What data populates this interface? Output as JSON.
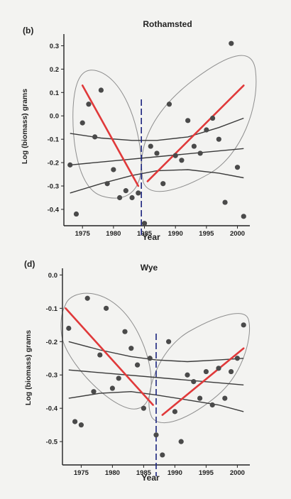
{
  "page": {
    "background": "#f3f3f1"
  },
  "colors": {
    "points": "#4a4a4a",
    "fit_lines": "#e0393a",
    "trend_lines": "#3a3a3a",
    "ellipses": "#8e8e8e",
    "break_line": "#1a237e",
    "axes": "#222222"
  },
  "chart_data": [
    {
      "type": "scatter",
      "panel_label": "(b)",
      "title": "Rothamsted",
      "xlabel": "Year",
      "ylabel": "Log (biomass) grams",
      "xlim": [
        1972,
        2002
      ],
      "ylim": [
        -0.47,
        0.35
      ],
      "xticks": [
        1975,
        1980,
        1985,
        1990,
        1995,
        2000
      ],
      "yticks": [
        0.3,
        0.2,
        0.1,
        0.0,
        -0.1,
        -0.2,
        -0.3,
        -0.4
      ],
      "ytick_labels": [
        "0.3",
        "0.2",
        "0.1",
        "0.0",
        "-0.1",
        "-0.2",
        "-0.3",
        "-0.4"
      ],
      "points": [
        {
          "x": 1973,
          "y": -0.21
        },
        {
          "x": 1974,
          "y": -0.42
        },
        {
          "x": 1975,
          "y": -0.03
        },
        {
          "x": 1976,
          "y": 0.05
        },
        {
          "x": 1977,
          "y": -0.09
        },
        {
          "x": 1978,
          "y": 0.11
        },
        {
          "x": 1979,
          "y": -0.29
        },
        {
          "x": 1980,
          "y": -0.23
        },
        {
          "x": 1981,
          "y": -0.35
        },
        {
          "x": 1982,
          "y": -0.32
        },
        {
          "x": 1983,
          "y": -0.35
        },
        {
          "x": 1984,
          "y": -0.33
        },
        {
          "x": 1985,
          "y": -0.46
        },
        {
          "x": 1986,
          "y": -0.13
        },
        {
          "x": 1987,
          "y": -0.16
        },
        {
          "x": 1988,
          "y": -0.29
        },
        {
          "x": 1989,
          "y": 0.05
        },
        {
          "x": 1990,
          "y": -0.17
        },
        {
          "x": 1991,
          "y": -0.19
        },
        {
          "x": 1992,
          "y": -0.02
        },
        {
          "x": 1993,
          "y": -0.13
        },
        {
          "x": 1994,
          "y": -0.16
        },
        {
          "x": 1995,
          "y": -0.06
        },
        {
          "x": 1996,
          "y": -0.01
        },
        {
          "x": 1997,
          "y": -0.1
        },
        {
          "x": 1998,
          "y": -0.37
        },
        {
          "x": 1999,
          "y": 0.31
        },
        {
          "x": 2000,
          "y": -0.22
        },
        {
          "x": 2001,
          "y": -0.43
        }
      ],
      "segment_fits": [
        {
          "x": [
            1975,
            1984
          ],
          "y": [
            0.13,
            -0.3
          ]
        },
        {
          "x": [
            1985.5,
            2001
          ],
          "y": [
            -0.28,
            0.13
          ]
        }
      ],
      "overall_fit": {
        "center": {
          "x": [
            1973,
            2001
          ],
          "y": [
            -0.21,
            -0.14
          ]
        },
        "upper": {
          "x": [
            1973,
            1978,
            1983,
            1987,
            1992,
            1997,
            2001
          ],
          "y": [
            -0.075,
            -0.095,
            -0.105,
            -0.105,
            -0.09,
            -0.05,
            -0.01
          ]
        },
        "lower": {
          "x": [
            1973,
            1978,
            1983,
            1987,
            1992,
            1997,
            2001
          ],
          "y": [
            -0.33,
            -0.29,
            -0.255,
            -0.235,
            -0.23,
            -0.245,
            -0.265
          ]
        }
      },
      "breakpoint_year": 1984.5
    },
    {
      "type": "scatter",
      "panel_label": "(d)",
      "title": "Wye",
      "xlabel": "Year",
      "ylabel": "Log (biomass) grams",
      "xlim": [
        1972,
        2002
      ],
      "ylim": [
        -0.57,
        0.02
      ],
      "xticks": [
        1975,
        1980,
        1985,
        1990,
        1995,
        2000
      ],
      "yticks": [
        0.0,
        -0.1,
        -0.2,
        -0.3,
        -0.4,
        -0.5
      ],
      "ytick_labels": [
        "0.0",
        "-0.1",
        "-0.2",
        "-0.3",
        "-0.4",
        "-0.5"
      ],
      "points": [
        {
          "x": 1973,
          "y": -0.16
        },
        {
          "x": 1974,
          "y": -0.44
        },
        {
          "x": 1975,
          "y": -0.45
        },
        {
          "x": 1976,
          "y": -0.07
        },
        {
          "x": 1977,
          "y": -0.35
        },
        {
          "x": 1978,
          "y": -0.24
        },
        {
          "x": 1979,
          "y": -0.1
        },
        {
          "x": 1980,
          "y": -0.34
        },
        {
          "x": 1981,
          "y": -0.31
        },
        {
          "x": 1982,
          "y": -0.17
        },
        {
          "x": 1983,
          "y": -0.22
        },
        {
          "x": 1984,
          "y": -0.27
        },
        {
          "x": 1985,
          "y": -0.4
        },
        {
          "x": 1986,
          "y": -0.25
        },
        {
          "x": 1987,
          "y": -0.48
        },
        {
          "x": 1988,
          "y": -0.54
        },
        {
          "x": 1989,
          "y": -0.2
        },
        {
          "x": 1990,
          "y": -0.41
        },
        {
          "x": 1991,
          "y": -0.5
        },
        {
          "x": 1992,
          "y": -0.3
        },
        {
          "x": 1993,
          "y": -0.32
        },
        {
          "x": 1994,
          "y": -0.37
        },
        {
          "x": 1995,
          "y": -0.29
        },
        {
          "x": 1996,
          "y": -0.39
        },
        {
          "x": 1997,
          "y": -0.28
        },
        {
          "x": 1998,
          "y": -0.37
        },
        {
          "x": 1999,
          "y": -0.29
        },
        {
          "x": 2000,
          "y": -0.25
        },
        {
          "x": 2001,
          "y": -0.15
        }
      ],
      "segment_fits": [
        {
          "x": [
            1972.5,
            1986.5
          ],
          "y": [
            -0.1,
            -0.39
          ]
        },
        {
          "x": [
            1988,
            2001
          ],
          "y": [
            -0.42,
            -0.22
          ]
        }
      ],
      "overall_fit": {
        "center": {
          "x": [
            1973,
            2001
          ],
          "y": [
            -0.285,
            -0.33
          ]
        },
        "upper": {
          "x": [
            1973,
            1978,
            1983,
            1987,
            1992,
            1997,
            2001
          ],
          "y": [
            -0.2,
            -0.225,
            -0.245,
            -0.255,
            -0.26,
            -0.255,
            -0.25
          ]
        },
        "lower": {
          "x": [
            1973,
            1978,
            1983,
            1987,
            1992,
            1997,
            2001
          ],
          "y": [
            -0.37,
            -0.355,
            -0.35,
            -0.36,
            -0.375,
            -0.39,
            -0.41
          ]
        }
      },
      "breakpoint_year": 1987
    }
  ]
}
